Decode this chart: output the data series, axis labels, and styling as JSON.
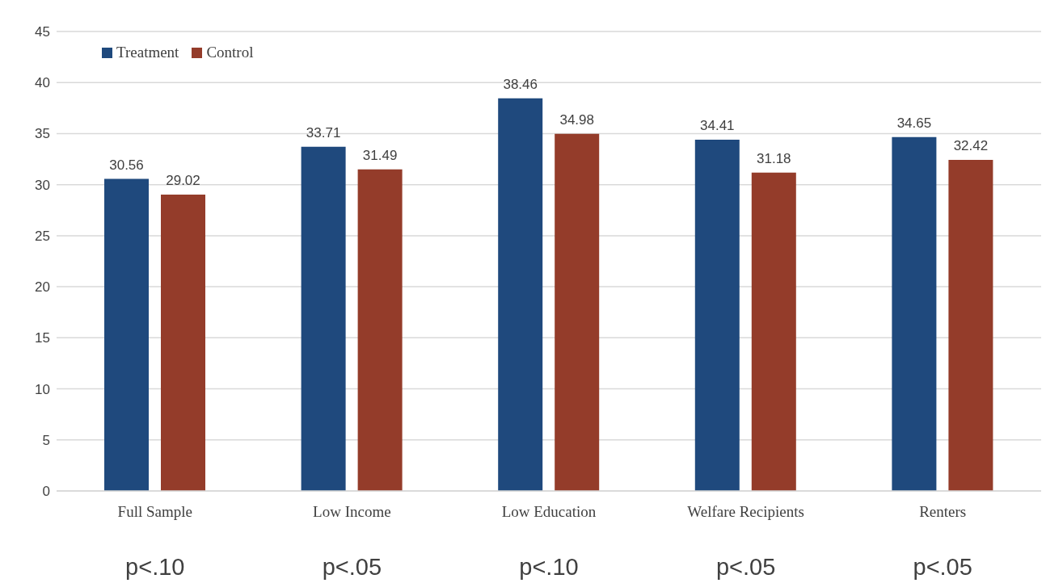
{
  "chart_data": {
    "type": "bar",
    "categories": [
      "Full Sample",
      "Low Income",
      "Low Education",
      "Welfare Recipients",
      "Renters"
    ],
    "series": [
      {
        "name": "Treatment",
        "color": "#1f497d",
        "values": [
          30.56,
          33.71,
          38.46,
          34.41,
          34.65
        ]
      },
      {
        "name": "Control",
        "color": "#943c2a",
        "values": [
          29.02,
          31.49,
          34.98,
          31.18,
          32.42
        ]
      }
    ],
    "ylim": [
      0,
      45
    ],
    "yticks": [
      0,
      5,
      10,
      15,
      20,
      25,
      30,
      35,
      40,
      45
    ],
    "grid": "y",
    "legend": "top left",
    "data_labels": true,
    "annotations": [
      "p<.10",
      "p<.05",
      "p<.10",
      "p<.05",
      "p<.05"
    ]
  }
}
